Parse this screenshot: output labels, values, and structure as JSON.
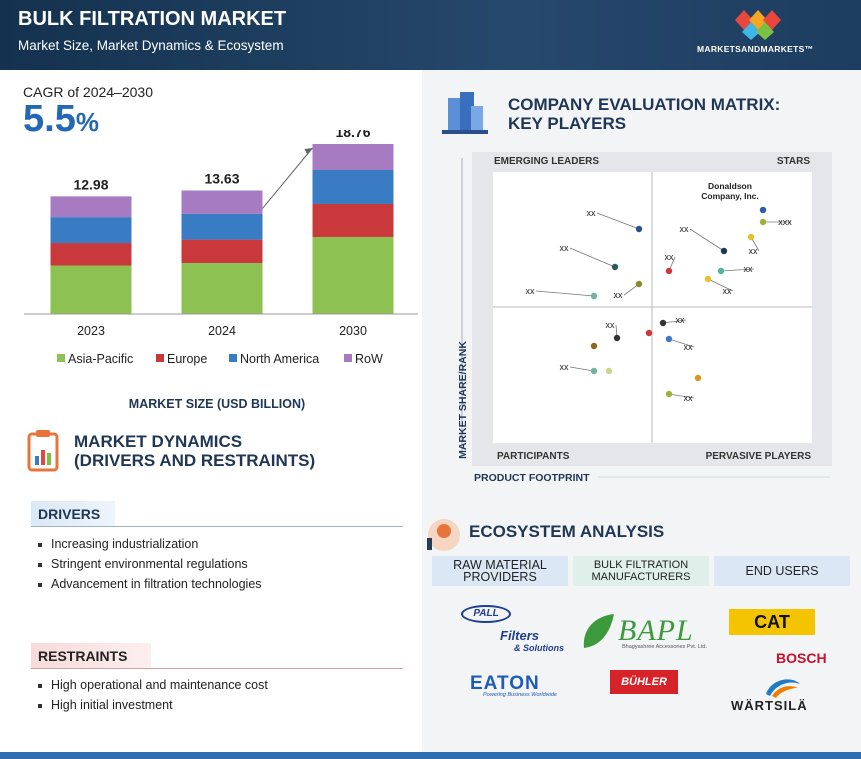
{
  "header": {
    "title": "BULK FILTRATION MARKET",
    "subtitle": "Market Size, Market Dynamics & Ecosystem",
    "brand": "MARKETSANDMARKETS™"
  },
  "cagr": {
    "label": "CAGR of 2024–2030",
    "value": "5.5",
    "unit": "%"
  },
  "chart_data": {
    "type": "bar",
    "stacked": true,
    "categories": [
      "2023",
      "2024",
      "2030"
    ],
    "totals": [
      12.98,
      13.63,
      18.76
    ],
    "series": [
      {
        "name": "Asia-Pacific",
        "color": "#8dc152",
        "values": [
          5.35,
          5.63,
          8.5
        ]
      },
      {
        "name": "Europe",
        "color": "#c9383a",
        "values": [
          2.48,
          2.58,
          3.64
        ]
      },
      {
        "name": "North America",
        "color": "#3a7cc4",
        "values": [
          2.86,
          2.86,
          3.75
        ]
      },
      {
        "name": "RoW",
        "color": "#a77bc1",
        "values": [
          2.29,
          2.56,
          2.87
        ]
      }
    ],
    "xlabel": "MARKET SIZE (USD BILLION)"
  },
  "dynamics": {
    "title": [
      "MARKET DYNAMICS",
      "(DRIVERS AND RESTRAINTS)"
    ],
    "drivers": {
      "heading": "DRIVERS",
      "items": [
        "Increasing industrialization",
        "Stringent environmental regulations",
        "Advancement in filtration technologies"
      ]
    },
    "restraints": {
      "heading": "RESTRAINTS",
      "items": [
        "High operational and maintenance cost",
        "High initial investment"
      ]
    }
  },
  "matrix": {
    "title": [
      "COMPANY EVALUATION MATRIX:",
      "KEY PLAYERS"
    ],
    "quadrants": {
      "top_left": "EMERGING LEADERS",
      "top_right": "STARS",
      "bottom_left": "PARTICIPANTS",
      "bottom_right": "PERVASIVE PLAYERS"
    },
    "ylabel": "MARKET SHARE/RANK",
    "xlabel": "PRODUCT FOOTPRINT",
    "points": [
      "xx",
      "xx",
      "xx",
      "xx",
      "xx",
      "xx",
      "xx",
      "xx",
      "Donaldson Company, Inc.",
      "xxx",
      "xx",
      "xx",
      "xx",
      "xx",
      "xx",
      "xx"
    ]
  },
  "ecosystem": {
    "title": "ECOSYSTEM ANALYSIS",
    "columns": [
      "RAW MATERIAL PROVIDERS",
      "BULK FILTRATION MANUFACTURERS",
      "END USERS"
    ],
    "logos": [
      "PALL",
      "Filters",
      "& Solutions",
      "BAPL",
      "Bhagyashree Accessories Pvt. Ltd.",
      "CAT",
      "BOSCH",
      "EATON",
      "Powering Business Worldwide",
      "BÜHLER",
      "WÄRTSILÄ"
    ]
  }
}
